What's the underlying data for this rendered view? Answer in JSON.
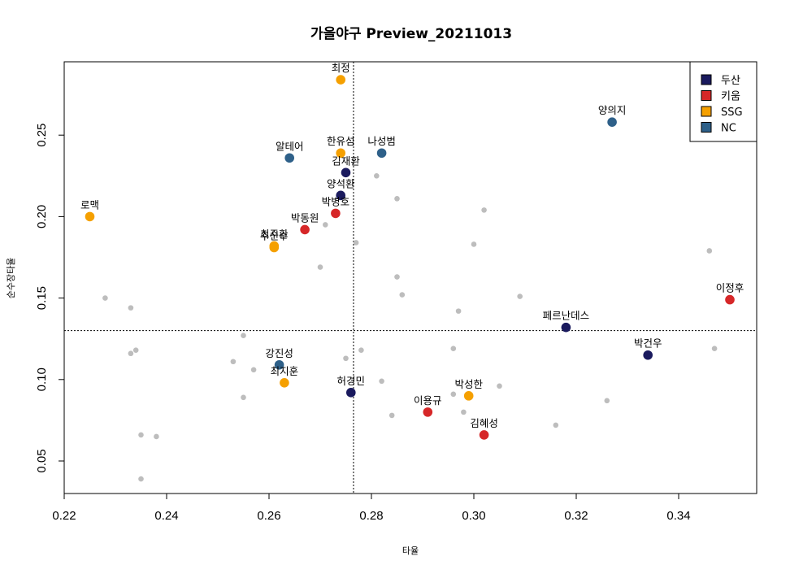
{
  "chart_data": {
    "type": "scatter",
    "title": "가을야구 Preview_20211013",
    "xlabel": "타율",
    "ylabel": "순수장타율",
    "xlim": [
      0.22,
      0.355
    ],
    "ylim": [
      0.03,
      0.3
    ],
    "xticks": [
      "0.22",
      "0.24",
      "0.26",
      "0.28",
      "0.30",
      "0.32",
      "0.34"
    ],
    "yticks": [
      "0.05",
      "0.10",
      "0.15",
      "0.20",
      "0.25"
    ],
    "ref_x": 0.2765,
    "ref_y": 0.13,
    "legend": {
      "position": "top-right",
      "items": [
        {
          "name": "두산",
          "color": "#1a1a5e"
        },
        {
          "name": "키움",
          "color": "#d62728"
        },
        {
          "name": "SSG",
          "color": "#f5a000"
        },
        {
          "name": "NC",
          "color": "#2e6089"
        }
      ]
    },
    "colors": {
      "두산": "#1a1a5e",
      "키움": "#d62728",
      "SSG": "#f5a000",
      "NC": "#2e6089",
      "other": "#bdbdbd"
    },
    "highlighted": [
      {
        "label": "최정",
        "team": "SSG",
        "x": 0.274,
        "y": 0.284
      },
      {
        "label": "양의지",
        "team": "NC",
        "x": 0.327,
        "y": 0.258
      },
      {
        "label": "한유섬",
        "team": "SSG",
        "x": 0.274,
        "y": 0.239
      },
      {
        "label": "나성범",
        "team": "NC",
        "x": 0.282,
        "y": 0.239
      },
      {
        "label": "알테어",
        "team": "NC",
        "x": 0.264,
        "y": 0.236
      },
      {
        "label": "김재환",
        "team": "두산",
        "x": 0.275,
        "y": 0.227
      },
      {
        "label": "양석환",
        "team": "두산",
        "x": 0.274,
        "y": 0.213
      },
      {
        "label": "박병호",
        "team": "키움",
        "x": 0.273,
        "y": 0.202
      },
      {
        "label": "로맥",
        "team": "SSG",
        "x": 0.225,
        "y": 0.2
      },
      {
        "label": "박동원",
        "team": "키움",
        "x": 0.267,
        "y": 0.192
      },
      {
        "label": "최주환",
        "team": "SSG",
        "x": 0.261,
        "y": 0.182
      },
      {
        "label": "추신수",
        "team": "SSG",
        "x": 0.261,
        "y": 0.181
      },
      {
        "label": "이정후",
        "team": "키움",
        "x": 0.35,
        "y": 0.149
      },
      {
        "label": "페르난데스",
        "team": "두산",
        "x": 0.318,
        "y": 0.132
      },
      {
        "label": "박건우",
        "team": "두산",
        "x": 0.334,
        "y": 0.115
      },
      {
        "label": "강진성",
        "team": "NC",
        "x": 0.262,
        "y": 0.109
      },
      {
        "label": "최지훈",
        "team": "SSG",
        "x": 0.263,
        "y": 0.098
      },
      {
        "label": "허경민",
        "team": "두산",
        "x": 0.276,
        "y": 0.092
      },
      {
        "label": "박성한",
        "team": "SSG",
        "x": 0.299,
        "y": 0.09
      },
      {
        "label": "이용규",
        "team": "키움",
        "x": 0.291,
        "y": 0.08
      },
      {
        "label": "김혜성",
        "team": "키움",
        "x": 0.302,
        "y": 0.066
      }
    ],
    "others": [
      [
        0.228,
        0.15
      ],
      [
        0.233,
        0.144
      ],
      [
        0.233,
        0.116
      ],
      [
        0.234,
        0.118
      ],
      [
        0.235,
        0.066
      ],
      [
        0.238,
        0.065
      ],
      [
        0.235,
        0.039
      ],
      [
        0.253,
        0.111
      ],
      [
        0.255,
        0.127
      ],
      [
        0.255,
        0.089
      ],
      [
        0.257,
        0.106
      ],
      [
        0.27,
        0.169
      ],
      [
        0.271,
        0.195
      ],
      [
        0.275,
        0.113
      ],
      [
        0.277,
        0.184
      ],
      [
        0.278,
        0.118
      ],
      [
        0.281,
        0.225
      ],
      [
        0.282,
        0.099
      ],
      [
        0.284,
        0.078
      ],
      [
        0.285,
        0.211
      ],
      [
        0.285,
        0.163
      ],
      [
        0.286,
        0.152
      ],
      [
        0.296,
        0.119
      ],
      [
        0.296,
        0.091
      ],
      [
        0.297,
        0.142
      ],
      [
        0.298,
        0.08
      ],
      [
        0.3,
        0.183
      ],
      [
        0.302,
        0.204
      ],
      [
        0.305,
        0.096
      ],
      [
        0.309,
        0.151
      ],
      [
        0.316,
        0.072
      ],
      [
        0.326,
        0.087
      ],
      [
        0.346,
        0.179
      ],
      [
        0.347,
        0.119
      ]
    ]
  }
}
